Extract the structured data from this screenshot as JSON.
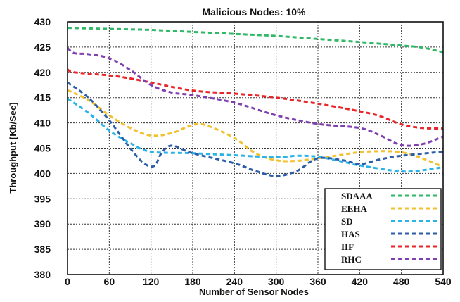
{
  "chart_data": {
    "type": "line",
    "title": "Malicious Nodes: 10%",
    "xlabel": "Number of Sensor Nodes",
    "ylabel": "Throughput [Kb/Sec]",
    "xlim": [
      0,
      540
    ],
    "ylim": [
      380,
      430
    ],
    "xticks": [
      0,
      60,
      120,
      180,
      240,
      300,
      360,
      420,
      480,
      540
    ],
    "yticks": [
      380,
      385,
      390,
      395,
      400,
      405,
      410,
      415,
      420,
      425,
      430
    ],
    "grid": true,
    "legend_position": "bottom-right",
    "series": [
      {
        "name": "SDAAA",
        "color": "#2fb865",
        "x": [
          0,
          60,
          120,
          180,
          240,
          300,
          360,
          420,
          480,
          510,
          540
        ],
        "y": [
          428.8,
          428.6,
          428.4,
          428.0,
          427.6,
          427.2,
          426.6,
          426.0,
          425.3,
          424.9,
          424.0
        ]
      },
      {
        "name": "EEHA",
        "color": "#f2c12e",
        "x": [
          0,
          30,
          60,
          90,
          120,
          150,
          180,
          200,
          240,
          270,
          300,
          330,
          360,
          390,
          420,
          450,
          480,
          510,
          540
        ],
        "y": [
          416.5,
          414.5,
          411.5,
          409.0,
          407.5,
          408.0,
          409.6,
          409.5,
          407.0,
          404.0,
          402.6,
          402.5,
          403.0,
          403.6,
          404.2,
          404.4,
          404.2,
          403.0,
          401.3
        ]
      },
      {
        "name": "SD",
        "color": "#29b3e6",
        "x": [
          0,
          30,
          60,
          90,
          120,
          180,
          240,
          300,
          330,
          360,
          400,
          420,
          480,
          520,
          540
        ],
        "y": [
          414.8,
          412.0,
          408.5,
          406.0,
          404.3,
          404.0,
          403.6,
          403.2,
          403.5,
          403.3,
          402.2,
          401.6,
          400.4,
          400.8,
          401.3
        ]
      },
      {
        "name": "HAS",
        "color": "#2e5da8",
        "x": [
          0,
          30,
          60,
          90,
          110,
          125,
          135,
          150,
          180,
          240,
          270,
          300,
          330,
          360,
          400,
          420,
          450,
          480,
          540
        ],
        "y": [
          418.0,
          415.0,
          410.5,
          405.0,
          402.0,
          401.5,
          404.0,
          405.5,
          404.0,
          402.0,
          400.5,
          399.5,
          400.5,
          403.0,
          402.5,
          401.8,
          402.8,
          403.5,
          404.3
        ]
      },
      {
        "name": "IIF",
        "color": "#e8262a",
        "x": [
          0,
          10,
          60,
          90,
          120,
          180,
          240,
          300,
          360,
          420,
          450,
          480,
          510,
          540
        ],
        "y": [
          420.6,
          420.0,
          419.4,
          418.8,
          418.0,
          416.4,
          415.8,
          415.0,
          413.8,
          412.3,
          411.3,
          409.7,
          409.0,
          408.9
        ]
      },
      {
        "name": "RHC",
        "color": "#7f3fb0",
        "x": [
          0,
          10,
          30,
          60,
          90,
          120,
          150,
          180,
          240,
          300,
          360,
          420,
          450,
          480,
          510,
          540
        ],
        "y": [
          424.8,
          423.8,
          423.6,
          422.8,
          420.5,
          417.5,
          416.0,
          415.5,
          414.0,
          411.5,
          409.8,
          409.0,
          407.5,
          405.6,
          405.8,
          407.3
        ]
      }
    ]
  }
}
